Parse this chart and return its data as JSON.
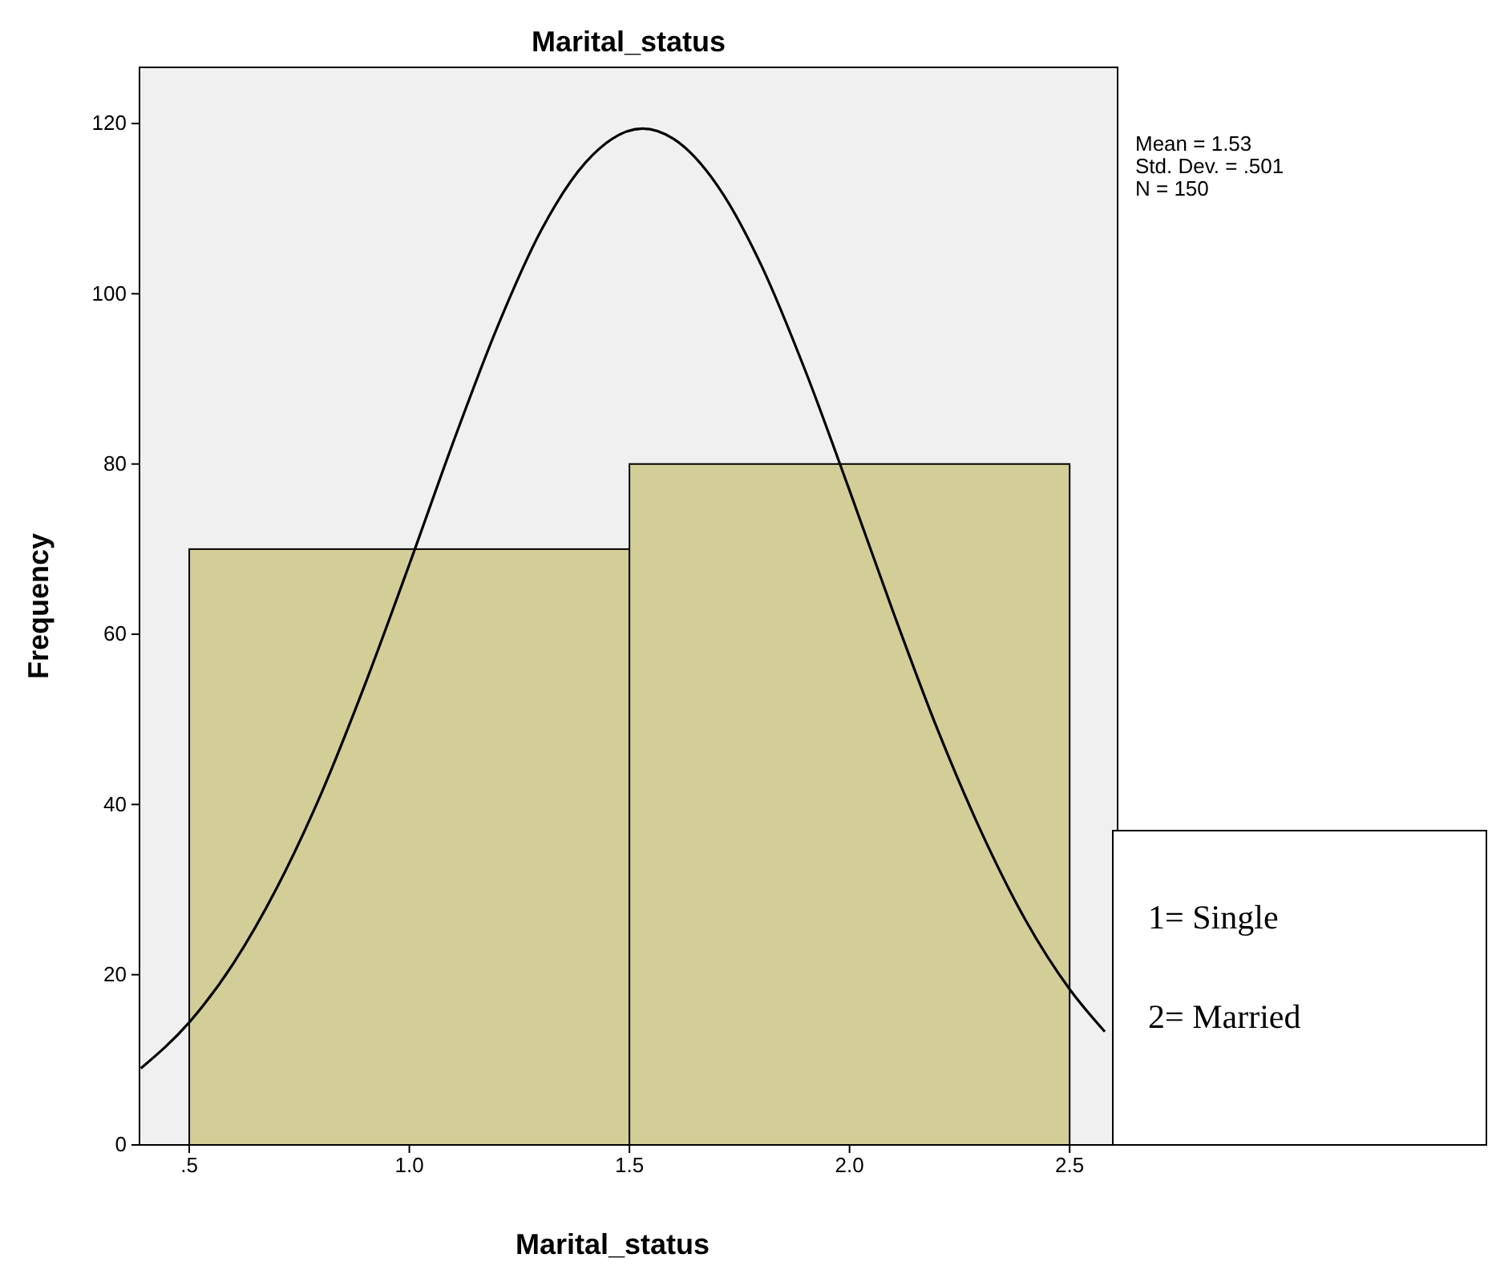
{
  "chart_data": {
    "type": "histogram",
    "title": "Marital_status",
    "xlabel": "Marital_status",
    "ylabel": "Frequency",
    "bins": [
      0.5,
      1.5,
      2.5
    ],
    "values": [
      70,
      80
    ],
    "color": "#d3ce97",
    "series": [
      {
        "type": "line",
        "color": "#000000",
        "x": [
          0.39,
          0.5,
          0.6,
          0.7,
          0.8,
          0.9,
          1.0,
          1.1,
          1.2,
          1.3,
          1.4,
          1.53,
          1.6,
          1.7,
          1.8,
          1.9,
          2.0,
          2.1,
          2.2,
          2.3,
          2.4,
          2.5,
          2.58
        ],
        "values": [
          9.0,
          14.4,
          21.3,
          30.3,
          41.3,
          54.2,
          68.2,
          82.6,
          96.1,
          107.5,
          115.4,
          119.4,
          118.2,
          112.7,
          103.3,
          90.9,
          76.9,
          62.5,
          48.8,
          36.7,
          26.4,
          18.3,
          13.3
        ]
      }
    ],
    "xlim": [
      0.387,
      2.609
    ],
    "xticks": [
      {
        "value": 0.5,
        "label": ".5"
      },
      {
        "value": 1.0,
        "label": "1.0"
      },
      {
        "value": 1.5,
        "label": "1.5"
      },
      {
        "value": 2.0,
        "label": "2.0"
      },
      {
        "value": 2.5,
        "label": "2.5"
      }
    ],
    "ylim": [
      0,
      126.6
    ],
    "yticks": [
      0,
      20,
      40,
      60,
      80,
      100,
      120
    ],
    "grid": false,
    "annotations": [
      "Mean = 1.53",
      "Std. Dev. = .501",
      "N = 150",
      "1= Single",
      "2= Married"
    ]
  }
}
